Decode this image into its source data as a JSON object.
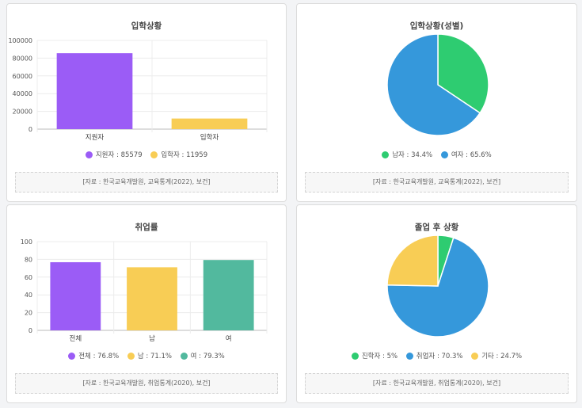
{
  "chart_data": [
    {
      "type": "bar",
      "title": "입학상황",
      "categories": [
        "지원자",
        "입학자"
      ],
      "values": [
        85579,
        11959
      ],
      "colors": [
        "#9b5cf6",
        "#f8cd55"
      ],
      "ylim": [
        0,
        100000
      ],
      "yticks": [
        "0",
        "20000",
        "40000",
        "60000",
        "80000",
        "100000"
      ],
      "legend": [
        "지원자 : 85579",
        "입학자 : 11959"
      ],
      "source": "[자료 : 한국교육개발원, 교육통계(2022), 보건]"
    },
    {
      "type": "pie",
      "title": "입학상황(성별)",
      "categories": [
        "남자",
        "여자"
      ],
      "values": [
        34.4,
        65.6
      ],
      "colors": [
        "#2ecc71",
        "#3598db"
      ],
      "legend": [
        "남자 : 34.4%",
        "여자 : 65.6%"
      ],
      "source": "[자료 : 한국교육개발원, 교육통계(2022), 보건]"
    },
    {
      "type": "bar",
      "title": "취업률",
      "categories": [
        "전체",
        "남",
        "여"
      ],
      "values": [
        76.8,
        71.1,
        79.3
      ],
      "colors": [
        "#9b5cf6",
        "#f8cd55",
        "#52b99e"
      ],
      "ylim": [
        0,
        100
      ],
      "yticks": [
        "0",
        "20",
        "40",
        "60",
        "80",
        "100"
      ],
      "legend": [
        "전체 : 76.8%",
        "남 : 71.1%",
        "여 : 79.3%"
      ],
      "source": "[자료 : 한국교육개발원, 취업통계(2020), 보건]"
    },
    {
      "type": "pie",
      "title": "졸업 후 상황",
      "categories": [
        "진학자",
        "취업자",
        "기타"
      ],
      "values": [
        5,
        70.3,
        24.7
      ],
      "colors": [
        "#2ecc71",
        "#3598db",
        "#f8cd55"
      ],
      "legend": [
        "진학자 : 5%",
        "취업자 : 70.3%",
        "기타 : 24.7%"
      ],
      "source": "[자료 : 한국교육개발원, 취업통계(2020), 보건]"
    }
  ]
}
